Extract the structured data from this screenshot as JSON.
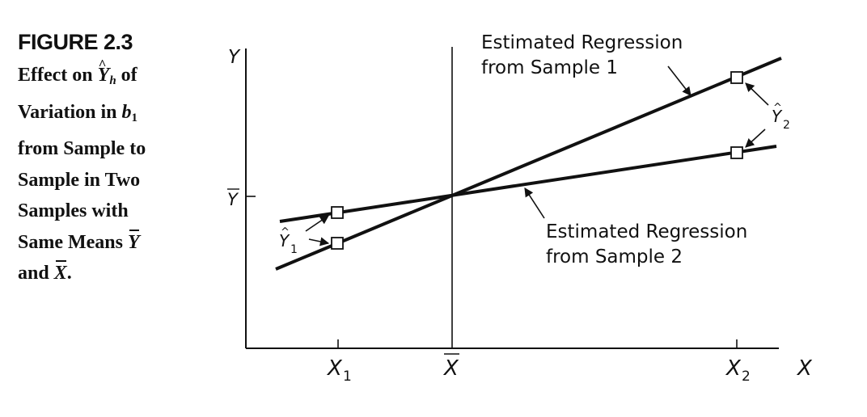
{
  "caption": {
    "figure_label": "FIGURE 2.3",
    "line1_a": "Effect on ",
    "line1_y": "Y",
    "line1_h": "h",
    "line1_b": " of",
    "line2_a": "Variation in ",
    "line2_b": "b",
    "line2_1": "1",
    "line3": "from Sample to",
    "line4": "Sample in Two",
    "line5": "Samples with",
    "line6_a": "Same Means ",
    "line6_y": "Y",
    "line7_a": "and ",
    "line7_x": "X",
    "line7_b": "."
  },
  "diagram": {
    "y_axis_label": "Y",
    "y_bar_label": "Y",
    "x_axis_label": "X",
    "x1_label": "X",
    "x1_sub": "1",
    "xbar_label": "X",
    "x2_label": "X",
    "x2_sub": "2",
    "yhat1_label": "Y",
    "yhat1_sub": "1",
    "yhat2_label": "Y",
    "yhat2_sub": "2",
    "sample1_line1": "Estimated Regression",
    "sample1_line2": "from Sample 1",
    "sample2_line1": "Estimated Regression",
    "sample2_line2": "from Sample 2"
  }
}
